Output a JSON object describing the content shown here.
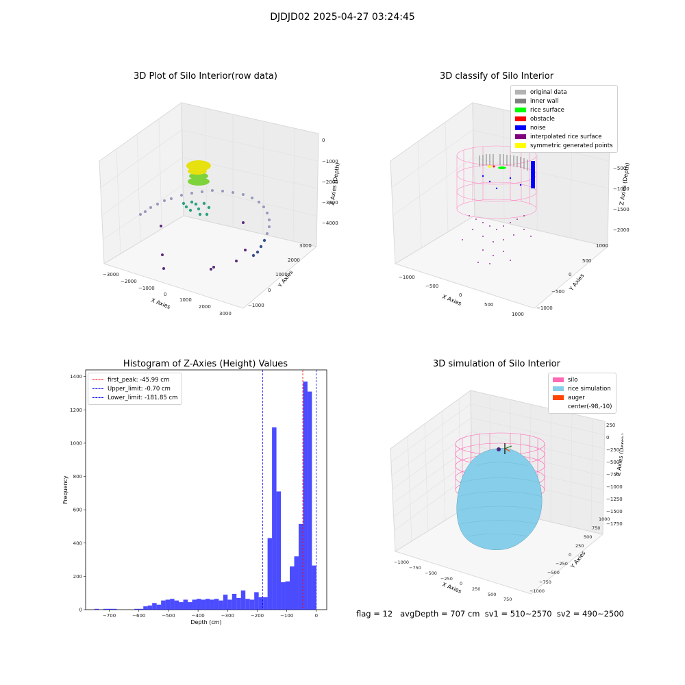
{
  "figure_title": "DJDJD02 2025-04-27 03:24:45",
  "panels": {
    "raw": {
      "title": "3D Plot of Silo Interior(row data)",
      "xlabel": "X Axies",
      "ylabel": "Y Axies",
      "zlabel": "Z Axies (Depth)",
      "xticks": [
        "−3000",
        "−2000",
        "−1000",
        "0",
        "1000",
        "2000",
        "3000"
      ],
      "yticks": [
        "−1000",
        "0",
        "1000",
        "2000",
        "3000"
      ],
      "zticks": [
        "0",
        "−1000",
        "−2000",
        "−3000",
        "−4000"
      ]
    },
    "classify": {
      "title": "3D classify of Silo Interior",
      "xlabel": "X Axies",
      "ylabel": "Y Axies",
      "zlabel": "Z Axies (Depth)",
      "xticks": [
        "−1000",
        "−500",
        "0",
        "500",
        "1000"
      ],
      "yticks": [
        "−1000",
        "−500",
        "0",
        "500",
        "1000"
      ],
      "zticks": [
        "−500",
        "−1000",
        "−1500",
        "−2000"
      ],
      "legend": [
        {
          "label": "original data",
          "color": "#b3b3b3"
        },
        {
          "label": "inner wall",
          "color": "#808080"
        },
        {
          "label": "rice surface",
          "color": "#00ff00"
        },
        {
          "label": "obstacle",
          "color": "#ff0000"
        },
        {
          "label": "noise",
          "color": "#0000ff"
        },
        {
          "label": "interpolated rice surface",
          "color": "#800080"
        },
        {
          "label": "symmetric generated points",
          "color": "#ffff00"
        }
      ]
    },
    "simulation": {
      "title": "3D simulation of Silo Interior",
      "xlabel": "X Axies",
      "ylabel": "Y Axies",
      "zlabel": "Z Axies (Depth)",
      "xticks": [
        "−1000",
        "−750",
        "−500",
        "−250",
        "0",
        "250",
        "500",
        "750"
      ],
      "yticks": [
        "−1000",
        "−750",
        "−500",
        "−250",
        "0",
        "250",
        "500",
        "750",
        "1000"
      ],
      "zticks": [
        "250",
        "0",
        "−250",
        "−500",
        "−750",
        "−1000",
        "−1250",
        "−1500",
        "−1750"
      ],
      "legend": [
        {
          "label": "silo",
          "color": "#ff69b4"
        },
        {
          "label": "rice simulation",
          "color": "#87ceeb"
        },
        {
          "label": "auger",
          "color": "#ff4500"
        },
        {
          "label": "center(-98,-10)",
          "color": "#ffffff"
        }
      ]
    }
  },
  "bottom_note": "flag = 12   avgDepth = 707 cm  sv1 = 510~2570  sv2 = 490~2500",
  "chart_data": {
    "type": "bar",
    "title": "Histogram of Z-Axies (Height) Values",
    "xlabel": "Depth (cm)",
    "ylabel": "Frequency",
    "xlim": [
      -780,
      35
    ],
    "ylim": [
      0,
      1440
    ],
    "bar_color": "#0000ff",
    "bin_width": 15,
    "bins": [
      [
        -750,
        5
      ],
      [
        -735,
        0
      ],
      [
        -720,
        5
      ],
      [
        -705,
        5
      ],
      [
        -690,
        5
      ],
      [
        -675,
        0
      ],
      [
        -660,
        0
      ],
      [
        -645,
        0
      ],
      [
        -630,
        0
      ],
      [
        -615,
        5
      ],
      [
        -600,
        5
      ],
      [
        -585,
        20
      ],
      [
        -570,
        25
      ],
      [
        -555,
        40
      ],
      [
        -540,
        30
      ],
      [
        -525,
        55
      ],
      [
        -510,
        60
      ],
      [
        -495,
        65
      ],
      [
        -480,
        55
      ],
      [
        -465,
        45
      ],
      [
        -450,
        60
      ],
      [
        -435,
        45
      ],
      [
        -420,
        60
      ],
      [
        -405,
        65
      ],
      [
        -390,
        60
      ],
      [
        -375,
        65
      ],
      [
        -360,
        60
      ],
      [
        -345,
        65
      ],
      [
        -330,
        55
      ],
      [
        -315,
        90
      ],
      [
        -300,
        60
      ],
      [
        -285,
        95
      ],
      [
        -270,
        70
      ],
      [
        -255,
        115
      ],
      [
        -240,
        65
      ],
      [
        -225,
        60
      ],
      [
        -210,
        105
      ],
      [
        -195,
        75
      ],
      [
        -180,
        75
      ],
      [
        -165,
        430
      ],
      [
        -150,
        1095
      ],
      [
        -135,
        710
      ],
      [
        -120,
        165
      ],
      [
        -105,
        170
      ],
      [
        -90,
        260
      ],
      [
        -75,
        320
      ],
      [
        -60,
        515
      ],
      [
        -45,
        1370
      ],
      [
        -30,
        1310
      ],
      [
        -15,
        265
      ]
    ],
    "xticks": [
      "−700",
      "−600",
      "−500",
      "−400",
      "−300",
      "−200",
      "−100",
      "0"
    ],
    "xtick_values": [
      -700,
      -600,
      -500,
      -400,
      -300,
      -200,
      -100,
      0
    ],
    "yticks": [
      "0",
      "200",
      "400",
      "600",
      "800",
      "1000",
      "1200",
      "1400"
    ],
    "ytick_values": [
      0,
      200,
      400,
      600,
      800,
      1000,
      1200,
      1400
    ],
    "vlines": [
      {
        "label": "first_peak: -45.99 cm",
        "x": -45.99,
        "color": "#ff0000"
      },
      {
        "label": "Upper_limit: -0.70 cm",
        "x": -0.7,
        "color": "#0000ff"
      },
      {
        "label": "Lower_limit: -181.85 cm",
        "x": -181.85,
        "color": "#0000ff"
      }
    ],
    "legend_position": "upper left"
  }
}
